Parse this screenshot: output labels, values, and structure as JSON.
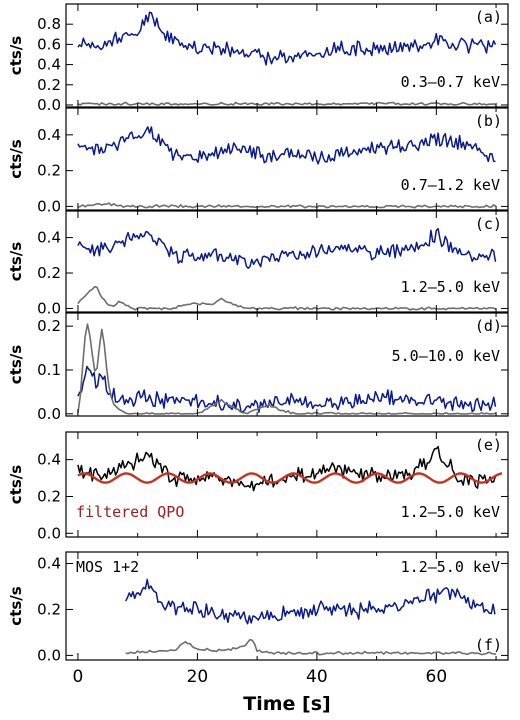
{
  "colors": {
    "source": "#0a1a8c",
    "background": "#6e6e6e",
    "source_e": "#000000",
    "qpo": "#c8321e",
    "qpo_label": "#a01e1e"
  },
  "chart_data": [
    {
      "type": "line",
      "panel": "a",
      "letter": "(a)",
      "energy": "0.3–0.7 keV",
      "ylabel": "cts/s",
      "xlim": [
        -2,
        72
      ],
      "ylim": [
        -0.02,
        1.0
      ],
      "yticks": [
        0.0,
        0.2,
        0.4,
        0.6,
        0.8
      ],
      "yticklabels": [
        "0.0",
        "0.2",
        "0.4",
        "0.6",
        "0.8"
      ],
      "series": [
        {
          "role": "source",
          "x": [
            0,
            4,
            8,
            10,
            12,
            14,
            16,
            20,
            24,
            28,
            32,
            36,
            40,
            44,
            48,
            52,
            56,
            60,
            64,
            68,
            70
          ],
          "y": [
            0.63,
            0.58,
            0.68,
            0.72,
            0.9,
            0.75,
            0.62,
            0.55,
            0.57,
            0.52,
            0.45,
            0.47,
            0.5,
            0.56,
            0.57,
            0.55,
            0.58,
            0.65,
            0.6,
            0.58,
            0.6
          ]
        },
        {
          "role": "background",
          "x": [
            0,
            10,
            20,
            30,
            40,
            50,
            60,
            70
          ],
          "y": [
            0.01,
            0.01,
            0.01,
            0.01,
            0.01,
            0.01,
            0.01,
            0.01
          ]
        }
      ]
    },
    {
      "type": "line",
      "panel": "b",
      "letter": "(b)",
      "energy": "0.7–1.2 keV",
      "ylabel": "cts/s",
      "xlim": [
        -2,
        72
      ],
      "ylim": [
        -0.02,
        0.55
      ],
      "yticks": [
        0.0,
        0.2,
        0.4
      ],
      "yticklabels": [
        "0.0",
        "0.2",
        "0.4"
      ],
      "series": [
        {
          "role": "source",
          "x": [
            0,
            4,
            8,
            12,
            16,
            20,
            24,
            28,
            32,
            36,
            40,
            44,
            48,
            52,
            56,
            60,
            64,
            68,
            70
          ],
          "y": [
            0.34,
            0.3,
            0.38,
            0.42,
            0.3,
            0.28,
            0.31,
            0.34,
            0.27,
            0.3,
            0.26,
            0.3,
            0.31,
            0.34,
            0.33,
            0.38,
            0.35,
            0.3,
            0.27
          ]
        },
        {
          "role": "background",
          "x": [
            0,
            2,
            4,
            6,
            8,
            10,
            20,
            30,
            40,
            50,
            60,
            70
          ],
          "y": [
            0.0,
            0.01,
            0.015,
            0.01,
            0.0,
            0.0,
            0.0,
            0.0,
            0.0,
            0.0,
            0.0,
            0.0
          ]
        }
      ]
    },
    {
      "type": "line",
      "panel": "c",
      "letter": "(c)",
      "energy": "1.2–5.0 keV",
      "ylabel": "cts/s",
      "xlim": [
        -2,
        72
      ],
      "ylim": [
        -0.02,
        0.55
      ],
      "yticks": [
        0.0,
        0.2,
        0.4
      ],
      "yticklabels": [
        "0.0",
        "0.2",
        "0.4"
      ],
      "series": [
        {
          "role": "source",
          "x": [
            0,
            4,
            8,
            12,
            16,
            20,
            24,
            28,
            32,
            36,
            40,
            44,
            48,
            52,
            56,
            60,
            64,
            68,
            70
          ],
          "y": [
            0.34,
            0.33,
            0.38,
            0.42,
            0.3,
            0.29,
            0.3,
            0.24,
            0.27,
            0.3,
            0.33,
            0.36,
            0.31,
            0.32,
            0.33,
            0.42,
            0.3,
            0.28,
            0.3
          ]
        },
        {
          "role": "background",
          "x": [
            0,
            2,
            3,
            4,
            5,
            6,
            7,
            9,
            12,
            16,
            18,
            20,
            22,
            24,
            27,
            30,
            35,
            40,
            48,
            56,
            64,
            70
          ],
          "y": [
            0.03,
            0.1,
            0.13,
            0.06,
            0.02,
            0.01,
            0.04,
            0.0,
            0.0,
            0.0,
            0.02,
            0.03,
            0.02,
            0.05,
            0.01,
            0.0,
            0.0,
            0.0,
            0.0,
            0.0,
            0.0,
            0.0
          ]
        }
      ]
    },
    {
      "type": "line",
      "panel": "d",
      "letter": "(d)",
      "energy": "5.0–10.0 keV",
      "ylabel": "cts/s",
      "xlim": [
        -2,
        72
      ],
      "ylim": [
        -0.005,
        0.23
      ],
      "yticks": [
        0.0,
        0.1,
        0.2
      ],
      "yticklabels": [
        "0.0",
        "0.1",
        "0.2"
      ],
      "series": [
        {
          "role": "source",
          "x": [
            0,
            1,
            2,
            3,
            4,
            5,
            6,
            8,
            10,
            14,
            20,
            26,
            30,
            36,
            40,
            46,
            50,
            56,
            60,
            64,
            68,
            70
          ],
          "y": [
            0.03,
            0.08,
            0.1,
            0.07,
            0.09,
            0.06,
            0.04,
            0.03,
            0.04,
            0.03,
            0.03,
            0.02,
            0.02,
            0.03,
            0.02,
            0.03,
            0.04,
            0.03,
            0.03,
            0.02,
            0.02,
            0.03
          ]
        },
        {
          "role": "background",
          "x": [
            0,
            0.5,
            1,
            1.5,
            2,
            2.5,
            3,
            3.5,
            4,
            4.5,
            5,
            5.5,
            6,
            7,
            8,
            10,
            14,
            20,
            24,
            28,
            32,
            36,
            40,
            44,
            48,
            52,
            56,
            60,
            64,
            68,
            70
          ],
          "y": [
            0.0,
            0.05,
            0.15,
            0.21,
            0.18,
            0.12,
            0.08,
            0.14,
            0.19,
            0.15,
            0.08,
            0.04,
            0.02,
            0.01,
            0.0,
            0.0,
            0.0,
            0.0,
            0.03,
            0.0,
            0.02,
            0.0,
            0.0,
            0.0,
            0.0,
            0.0,
            0.0,
            0.0,
            0.0,
            0.0,
            0.0
          ]
        }
      ]
    },
    {
      "type": "line",
      "panel": "e",
      "letter": "(e)",
      "energy": "1.2–5.0 keV",
      "extra_label": "filtered QPO",
      "ylabel": "cts/s",
      "xlim": [
        -2,
        72
      ],
      "ylim": [
        -0.02,
        0.55
      ],
      "yticks": [
        0.0,
        0.2,
        0.4
      ],
      "yticklabels": [
        "0.0",
        "0.2",
        "0.4"
      ],
      "series": [
        {
          "role": "source",
          "x": [
            0,
            4,
            8,
            12,
            16,
            20,
            24,
            28,
            32,
            36,
            40,
            44,
            48,
            52,
            56,
            60,
            64,
            68,
            70
          ],
          "y": [
            0.34,
            0.31,
            0.36,
            0.42,
            0.3,
            0.3,
            0.31,
            0.24,
            0.28,
            0.31,
            0.33,
            0.35,
            0.31,
            0.32,
            0.33,
            0.44,
            0.3,
            0.28,
            0.3
          ]
        },
        {
          "role": "qpo",
          "period_s": 7.0,
          "mean": 0.3,
          "amplitude": 0.025
        }
      ]
    },
    {
      "type": "line",
      "panel": "f",
      "letter": "(f)",
      "energy": "1.2–5.0 keV",
      "extra_label": "MOS 1+2",
      "ylabel": "cts/s",
      "xlim": [
        -2,
        72
      ],
      "ylim": [
        -0.02,
        0.45
      ],
      "yticks": [
        0.0,
        0.2,
        0.4
      ],
      "yticklabels": [
        "0.0",
        "0.2",
        "0.4"
      ],
      "xticks": [
        0,
        20,
        40,
        60
      ],
      "xticklabels": [
        "0",
        "20",
        "40",
        "60"
      ],
      "xlabel": "Time [s]",
      "series": [
        {
          "role": "source",
          "x": [
            8,
            10,
            12,
            14,
            18,
            22,
            26,
            30,
            34,
            38,
            42,
            46,
            50,
            54,
            58,
            62,
            66,
            70
          ],
          "y": [
            0.26,
            0.28,
            0.3,
            0.24,
            0.2,
            0.19,
            0.18,
            0.16,
            0.18,
            0.2,
            0.2,
            0.19,
            0.21,
            0.22,
            0.26,
            0.27,
            0.23,
            0.19
          ]
        },
        {
          "role": "background",
          "x": [
            8,
            12,
            16,
            18,
            20,
            24,
            28,
            29,
            30,
            34,
            40,
            50,
            60,
            70
          ],
          "y": [
            0.01,
            0.02,
            0.02,
            0.06,
            0.03,
            0.02,
            0.04,
            0.08,
            0.02,
            0.01,
            0.01,
            0.01,
            0.01,
            0.01
          ]
        }
      ]
    }
  ]
}
